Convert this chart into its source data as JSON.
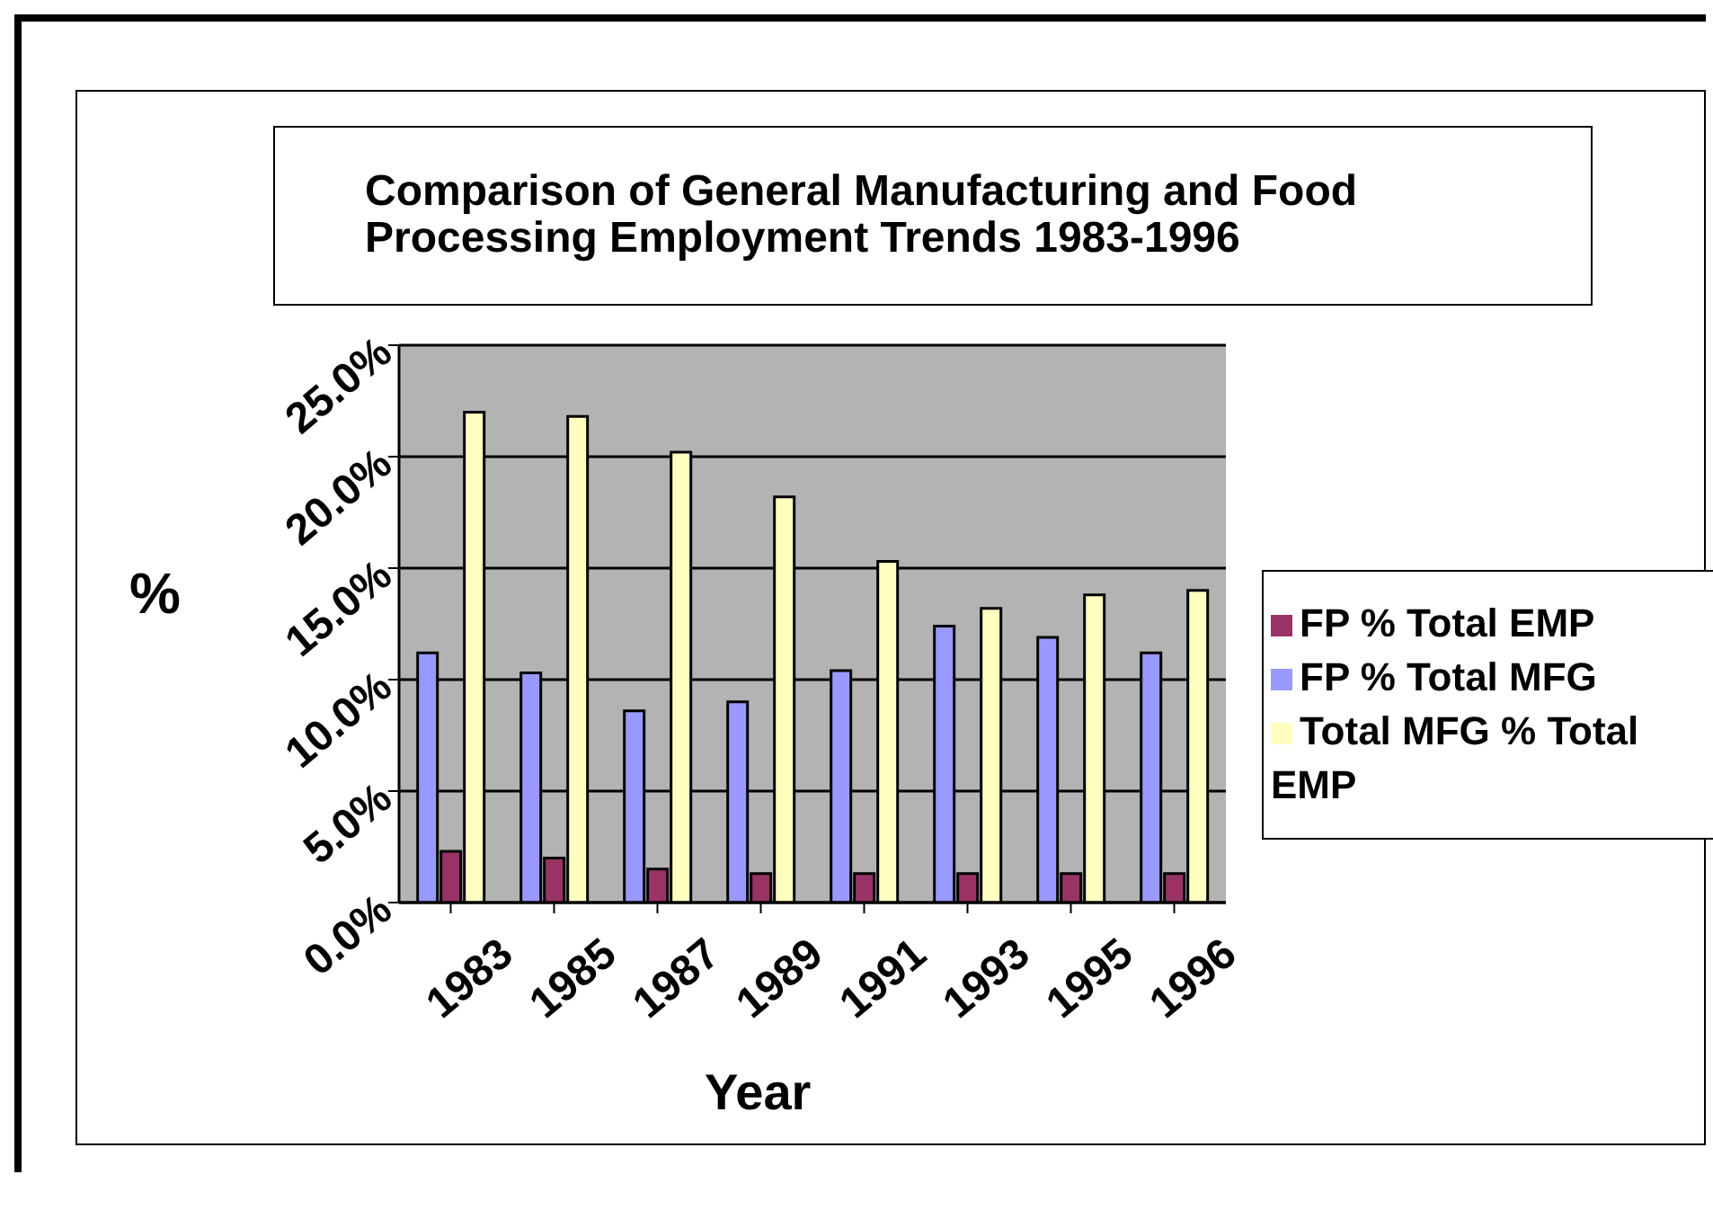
{
  "chart_data": {
    "type": "bar",
    "title": "Comparison of  General Manufacturing and Food Processing Employment Trends 1983-1996",
    "xlabel": "Year",
    "ylabel": "%",
    "categories": [
      "1983",
      "1985",
      "1987",
      "1989",
      "1991",
      "1993",
      "1995",
      "1996"
    ],
    "series": [
      {
        "name": "FP % Total MFG",
        "color": "#9999ff",
        "values": [
          11.2,
          10.3,
          8.6,
          9.0,
          10.4,
          12.4,
          11.9,
          11.2
        ]
      },
      {
        "name": "FP % Total EMP",
        "color": "#993366",
        "values": [
          2.3,
          2.0,
          1.5,
          1.3,
          1.3,
          1.3,
          1.3,
          1.3
        ]
      },
      {
        "name": "Total MFG % Total EMP",
        "color": "#ffffc0",
        "values": [
          22.0,
          21.8,
          20.2,
          18.2,
          15.3,
          13.2,
          13.8,
          14.0
        ]
      }
    ],
    "ylim": [
      0,
      25
    ],
    "yticks": [
      {
        "value": 0,
        "label": "0.0%"
      },
      {
        "value": 5,
        "label": "5.0%"
      },
      {
        "value": 10,
        "label": "10.0%"
      },
      {
        "value": 15,
        "label": "15.0%"
      },
      {
        "value": 20,
        "label": "20.0%"
      },
      {
        "value": 25,
        "label": "25.0%"
      }
    ],
    "grid": "y",
    "legend": "right"
  }
}
